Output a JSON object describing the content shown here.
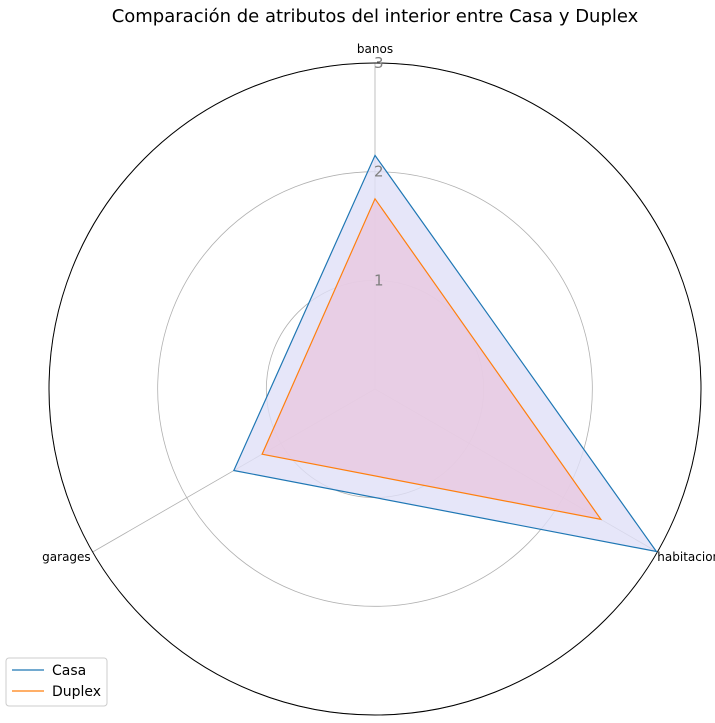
{
  "chart_data": {
    "type": "radar",
    "title": "Comparación de atributos del interior entre Casa y Duplex",
    "axes": [
      "banos",
      "habitaciones",
      "garages"
    ],
    "rmax": 3.0,
    "rticks": [
      1,
      2,
      3
    ],
    "rtick_labels": [
      "1",
      "2",
      "3"
    ],
    "grid": true,
    "legend_position": "bottom-left",
    "series": [
      {
        "name": "Casa",
        "values": [
          2.15,
          2.99,
          1.5
        ],
        "line_color": "#1f77b4",
        "fill_color": "#e0e0f8"
      },
      {
        "name": "Duplex",
        "values": [
          1.75,
          2.4,
          1.2
        ],
        "line_color": "#ff7f0e",
        "fill_color": "#e8c8e0"
      }
    ]
  }
}
